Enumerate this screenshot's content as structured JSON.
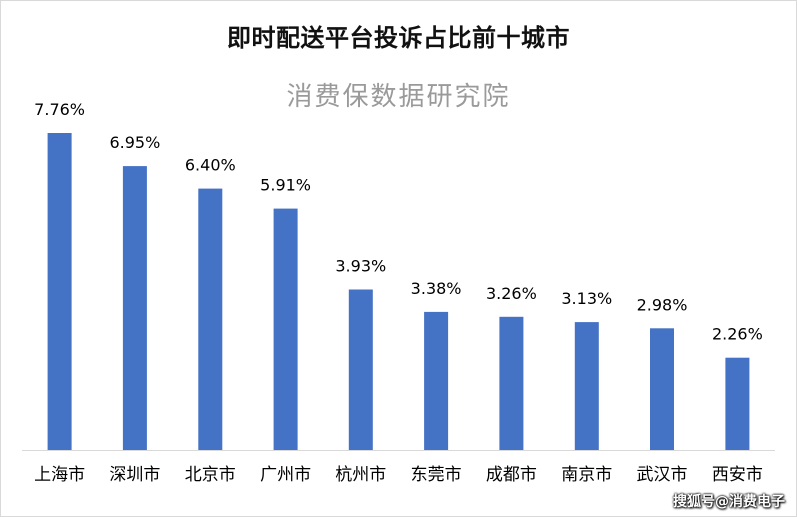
{
  "title": "即时配送平台投诉占比前十城市",
  "subtitle": "消费保数据研究院",
  "watermark": "搜狐号@消费电子",
  "colors": {
    "bar": "#4472c4",
    "axis": "#d9d9d9",
    "label": "#000000",
    "subtitle": "#9a9a9a"
  },
  "chart_data": {
    "type": "bar",
    "title": "即时配送平台投诉占比前十城市",
    "subtitle": "消费保数据研究院",
    "categories": [
      "上海市",
      "深圳市",
      "北京市",
      "广州市",
      "杭州市",
      "东莞市",
      "成都市",
      "南京市",
      "武汉市",
      "西安市"
    ],
    "values": [
      7.76,
      6.95,
      6.4,
      5.91,
      3.93,
      3.38,
      3.26,
      3.13,
      2.98,
      2.26
    ],
    "data_labels": [
      "7.76%",
      "6.95%",
      "6.40%",
      "5.91%",
      "3.93%",
      "3.38%",
      "3.26%",
      "3.13%",
      "2.98%",
      "2.26%"
    ],
    "unit": "%",
    "ylim": [
      0,
      8
    ],
    "grid": false,
    "legend": "none"
  }
}
